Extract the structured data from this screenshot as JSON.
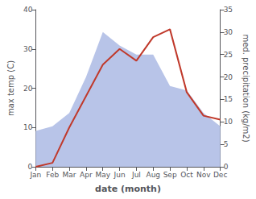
{
  "chart_data": {
    "type": "line",
    "categories": [
      "Jan",
      "Feb",
      "Mar",
      "Apr",
      "May",
      "Jun",
      "Jul",
      "Aug",
      "Sep",
      "Oct",
      "Nov",
      "Dec"
    ],
    "xlabel": "date (month)",
    "ylabel": "max temp (C)",
    "y2label": "med. precipitation (kg/m2)",
    "series": [
      {
        "type": "area",
        "axis": "y2",
        "color": "#b8c4e8",
        "values": [
          8,
          9,
          12,
          20,
          30,
          27,
          25,
          25,
          18,
          17,
          12,
          9
        ]
      },
      {
        "type": "line",
        "color": "#c0392b",
        "values": [
          0,
          1,
          10,
          18,
          26,
          30,
          27,
          33,
          35,
          19,
          13,
          12
        ]
      }
    ],
    "ylim": [
      0,
      40
    ],
    "yticks": [
      0,
      10,
      20,
      30,
      40
    ],
    "y2lim": [
      0,
      35
    ],
    "y2ticks": [
      0,
      5,
      10,
      15,
      20,
      25,
      30,
      35
    ],
    "grid": false
  }
}
